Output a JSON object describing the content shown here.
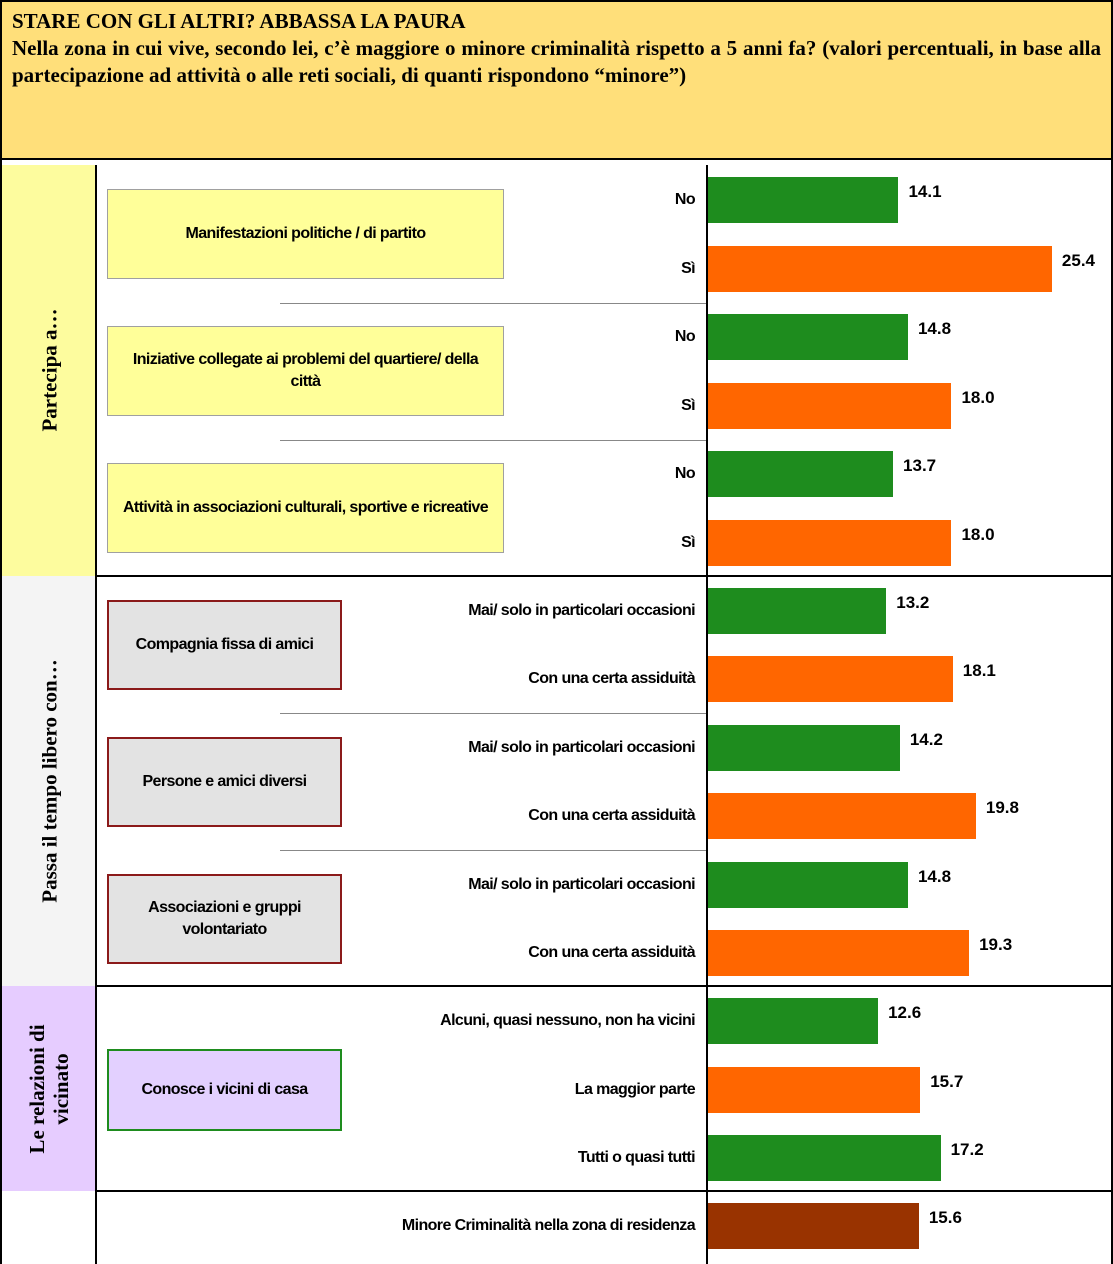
{
  "chart_data": {
    "type": "bar",
    "orientation": "horizontal",
    "title": "STARE CON GLI ALTRI? ABBASSA LA PAURA",
    "subtitle": "Nella zona in cui vive, secondo lei, c’è maggiore o minore criminalità rispetto a 5 anni fa? (valori percentuali, in base alla partecipazione ad attività o alle reti sociali, di quanti rispondono “minore”)",
    "xlim": [
      0,
      30
    ],
    "sections": [
      {
        "label": "Partecipa a…",
        "groups": [
          {
            "label": "Manifestazioni politiche / di partito",
            "bars": [
              {
                "label": "No",
                "value": 14.1,
                "color": "#1e8c1e"
              },
              {
                "label": "Sì",
                "value": 25.4,
                "color": "#ff6600"
              }
            ]
          },
          {
            "label": "Iniziative collegate ai problemi del quartiere/ della città",
            "bars": [
              {
                "label": "No",
                "value": 14.8,
                "color": "#1e8c1e"
              },
              {
                "label": "Sì",
                "value": 18,
                "value_label": "18.0",
                "color": "#ff6600"
              }
            ]
          },
          {
            "label": "Attività in associazioni culturali, sportive e ricreative",
            "bars": [
              {
                "label": "No",
                "value": 13.7,
                "color": "#1e8c1e"
              },
              {
                "label": "Sì",
                "value": 18,
                "value_label": "18.0",
                "color": "#ff6600"
              }
            ]
          }
        ]
      },
      {
        "label": "Passa il tempo libero con…",
        "groups": [
          {
            "label": "Compagnia fissa di amici",
            "bars": [
              {
                "label": "Mai/ solo in particolari occasioni",
                "value": 13.2,
                "color": "#1e8c1e"
              },
              {
                "label": "Con una certa assiduità",
                "value": 18.1,
                "color": "#ff6600"
              }
            ]
          },
          {
            "label": "Persone e amici diversi",
            "bars": [
              {
                "label": "Mai/ solo in particolari occasioni",
                "value": 14.2,
                "color": "#1e8c1e"
              },
              {
                "label": "Con una certa assiduità",
                "value": 19.8,
                "color": "#ff6600"
              }
            ]
          },
          {
            "label": "Associazioni e gruppi volontariato",
            "bars": [
              {
                "label": "Mai/ solo in particolari occasioni",
                "value": 14.8,
                "color": "#1e8c1e"
              },
              {
                "label": "Con una certa assiduità",
                "value": 19.3,
                "color": "#ff6600"
              }
            ]
          }
        ]
      },
      {
        "label": "Le relazioni di vicinato",
        "groups": [
          {
            "label": "Conosce i vicini di casa",
            "bars": [
              {
                "label": "Alcuni, quasi nessuno, non ha vicini",
                "value": 12.6,
                "color": "#1e8c1e"
              },
              {
                "label": "La maggior parte",
                "value": 15.7,
                "color": "#ff6600"
              },
              {
                "label": "Tutti o quasi tutti",
                "value": 17.2,
                "color": "#1e8c1e"
              }
            ]
          }
        ]
      },
      {
        "groups": [
          {
            "bars": [
              {
                "label": "Minore Criminalità nella zona di residenza",
                "value": 15.6,
                "color": "#993300"
              }
            ]
          }
        ]
      }
    ]
  }
}
